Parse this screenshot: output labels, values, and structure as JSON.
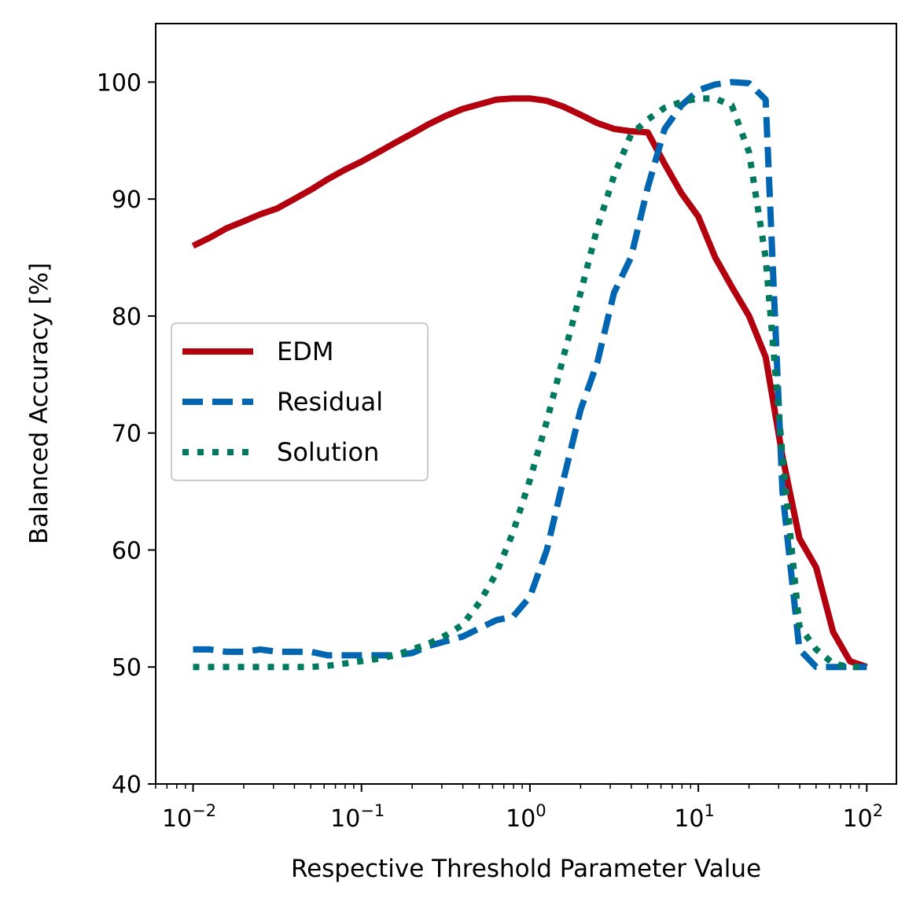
{
  "chart_data": {
    "type": "line",
    "title": "",
    "xlabel": "Respective Threshold Parameter Value",
    "ylabel": "Balanced Accuracy [%]",
    "xscale": "log",
    "xlim": [
      0.006,
      150
    ],
    "ylim": [
      40,
      105
    ],
    "yticks": [
      40,
      50,
      60,
      70,
      80,
      90,
      100
    ],
    "xticks": [
      {
        "value": 0.01,
        "base": "10",
        "exp": "−2"
      },
      {
        "value": 0.1,
        "base": "10",
        "exp": "−1"
      },
      {
        "value": 1,
        "base": "10",
        "exp": "0"
      },
      {
        "value": 10,
        "base": "10",
        "exp": "1"
      },
      {
        "value": 100,
        "base": "10",
        "exp": "2"
      }
    ],
    "grid": false,
    "legend_position": "center-left",
    "series": [
      {
        "name": "EDM",
        "color": "#b2000f",
        "style": "solid",
        "x": [
          0.01,
          0.0126,
          0.0158,
          0.02,
          0.0251,
          0.0316,
          0.0398,
          0.0501,
          0.0631,
          0.0794,
          0.1,
          0.126,
          0.158,
          0.2,
          0.251,
          0.316,
          0.398,
          0.501,
          0.631,
          0.794,
          1.0,
          1.26,
          1.58,
          2.0,
          2.51,
          3.16,
          3.98,
          5.01,
          6.31,
          7.94,
          10,
          12.6,
          15.8,
          20,
          25.1,
          31.6,
          39.8,
          50.1,
          63.1,
          79.4,
          100
        ],
        "y": [
          86,
          86.7,
          87.5,
          88.1,
          88.7,
          89.2,
          90.0,
          90.8,
          91.7,
          92.5,
          93.2,
          94.0,
          94.8,
          95.6,
          96.4,
          97.1,
          97.7,
          98.1,
          98.5,
          98.6,
          98.6,
          98.4,
          97.9,
          97.2,
          96.5,
          96.0,
          95.8,
          95.7,
          93.0,
          90.5,
          88.5,
          85.0,
          82.5,
          80.0,
          76.5,
          68.0,
          61.0,
          58.5,
          53.0,
          50.5,
          50.0
        ]
      },
      {
        "name": "Residual",
        "color": "#0066b2",
        "style": "dashed",
        "x": [
          0.01,
          0.0126,
          0.0158,
          0.02,
          0.0251,
          0.0316,
          0.0398,
          0.0501,
          0.0631,
          0.0794,
          0.1,
          0.126,
          0.158,
          0.2,
          0.251,
          0.316,
          0.398,
          0.501,
          0.631,
          0.794,
          1.0,
          1.26,
          1.58,
          2.0,
          2.51,
          3.16,
          3.98,
          5.01,
          6.31,
          7.94,
          10,
          12.6,
          15.8,
          20,
          25.1,
          31.6,
          39.8,
          50.1,
          63.1,
          79.4,
          100
        ],
        "y": [
          51.5,
          51.5,
          51.3,
          51.3,
          51.5,
          51.3,
          51.3,
          51.3,
          51.0,
          51.0,
          51.0,
          51.0,
          51.0,
          51.2,
          51.8,
          52.2,
          52.6,
          53.3,
          54.0,
          54.3,
          56.0,
          60.0,
          66.0,
          72.0,
          76.0,
          82.0,
          85.0,
          91.0,
          96.0,
          98.0,
          99.3,
          99.8,
          100.0,
          99.9,
          98.5,
          65.0,
          51.5,
          50.0,
          50.0,
          50.0,
          50.0
        ]
      },
      {
        "name": "Solution",
        "color": "#007a5e",
        "style": "dotted",
        "x": [
          0.01,
          0.0126,
          0.0158,
          0.02,
          0.0251,
          0.0316,
          0.0398,
          0.0501,
          0.0631,
          0.0794,
          0.1,
          0.126,
          0.158,
          0.2,
          0.251,
          0.316,
          0.398,
          0.501,
          0.631,
          0.794,
          1.0,
          1.26,
          1.58,
          2.0,
          2.51,
          3.16,
          3.98,
          5.01,
          6.31,
          7.94,
          10,
          12.6,
          15.8,
          20,
          25.1,
          31.6,
          39.8,
          50.1,
          63.1,
          79.4,
          100
        ],
        "y": [
          50.0,
          50.0,
          50.0,
          50.0,
          50.0,
          50.0,
          50.0,
          50.0,
          50.1,
          50.3,
          50.5,
          50.7,
          51.0,
          51.5,
          52.0,
          52.7,
          53.6,
          55.5,
          58.0,
          61.5,
          66.0,
          71.0,
          76.5,
          82.0,
          87.5,
          92.0,
          95.5,
          96.8,
          97.8,
          98.3,
          98.6,
          98.6,
          98.0,
          94.0,
          85.0,
          68.0,
          53.5,
          51.5,
          50.3,
          50.0,
          50.0
        ]
      }
    ]
  }
}
